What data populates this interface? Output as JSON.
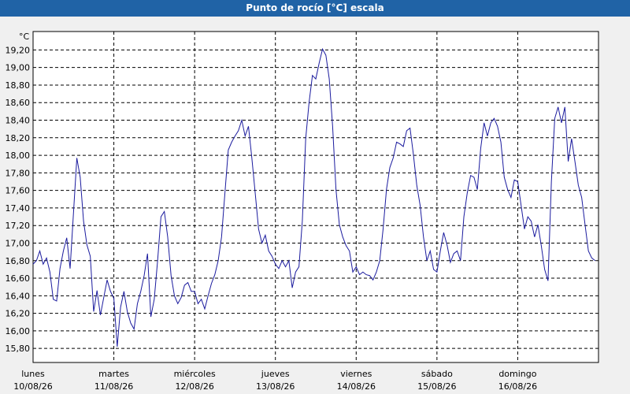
{
  "chart_data": {
    "type": "line",
    "title": "Punto de rocío [°C] escala",
    "y_unit": "°C",
    "xlim": [
      0,
      168
    ],
    "ylim": [
      15.64,
      19.41
    ],
    "grid": true,
    "xticks": [
      {
        "value": 0,
        "label": "lunes"
      },
      {
        "value": 24,
        "label": "martes"
      },
      {
        "value": 48,
        "label": "miércoles"
      },
      {
        "value": 72,
        "label": "jueves"
      },
      {
        "value": 96,
        "label": "viernes"
      },
      {
        "value": 120,
        "label": "sábado"
      },
      {
        "value": 144,
        "label": "domingo"
      }
    ],
    "xtick_dates": [
      "10/08/26",
      "11/08/26",
      "12/08/26",
      "13/08/26",
      "14/08/26",
      "15/08/26",
      "16/08/26"
    ],
    "yticks": [
      {
        "value": 15.8,
        "label": "15,80"
      },
      {
        "value": 16.0,
        "label": "16,00"
      },
      {
        "value": 16.2,
        "label": "16,20"
      },
      {
        "value": 16.4,
        "label": "16,40"
      },
      {
        "value": 16.6,
        "label": "16,60"
      },
      {
        "value": 16.8,
        "label": "16,80"
      },
      {
        "value": 17.0,
        "label": "17,00"
      },
      {
        "value": 17.2,
        "label": "17,20"
      },
      {
        "value": 17.4,
        "label": "17,40"
      },
      {
        "value": 17.6,
        "label": "17,60"
      },
      {
        "value": 17.8,
        "label": "17,80"
      },
      {
        "value": 18.0,
        "label": "18,00"
      },
      {
        "value": 18.2,
        "label": "18,20"
      },
      {
        "value": 18.4,
        "label": "18,40"
      },
      {
        "value": 18.6,
        "label": "18,60"
      },
      {
        "value": 18.8,
        "label": "18,80"
      },
      {
        "value": 19.0,
        "label": "19,00"
      },
      {
        "value": 19.2,
        "label": "19,20"
      }
    ],
    "x": [
      0,
      1,
      2,
      3,
      4,
      5,
      6,
      7,
      8,
      9,
      10,
      11,
      12,
      13,
      14,
      15,
      16,
      17,
      18,
      19,
      20,
      21,
      22,
      23,
      24,
      25,
      26,
      27,
      28,
      29,
      30,
      31,
      32,
      33,
      34,
      35,
      36,
      37,
      38,
      39,
      40,
      41,
      42,
      43,
      44,
      45,
      46,
      47,
      48,
      49,
      50,
      51,
      52,
      53,
      54,
      55,
      56,
      57,
      58,
      59,
      60,
      61,
      62,
      63,
      64,
      65,
      66,
      67,
      68,
      69,
      70,
      71,
      72,
      73,
      74,
      75,
      76,
      77,
      78,
      79,
      80,
      81,
      82,
      83,
      84,
      85,
      86,
      87,
      88,
      89,
      90,
      91,
      92,
      93,
      94,
      95,
      96,
      97,
      98,
      99,
      100,
      101,
      102,
      103,
      104,
      105,
      106,
      107,
      108,
      109,
      110,
      111,
      112,
      113,
      114,
      115,
      116,
      117,
      118,
      119,
      120,
      121,
      122,
      123,
      124,
      125,
      126,
      127,
      128,
      129,
      130,
      131,
      132,
      133,
      134,
      135,
      136,
      137,
      138,
      139,
      140,
      141,
      142,
      143,
      144,
      145,
      146,
      147,
      148,
      149,
      150,
      151,
      152,
      153,
      154,
      155,
      156,
      157,
      158,
      159,
      160,
      161,
      162,
      163,
      164,
      165,
      166,
      167
    ],
    "series": [
      {
        "color": "#1b1b9e",
        "values": [
          16.76,
          16.8,
          16.91,
          16.76,
          16.83,
          16.67,
          16.36,
          16.34,
          16.71,
          16.91,
          17.06,
          16.71,
          17.34,
          17.97,
          17.75,
          17.25,
          16.98,
          16.85,
          16.22,
          16.46,
          16.18,
          16.38,
          16.58,
          16.45,
          16.37,
          15.82,
          16.27,
          16.45,
          16.22,
          16.09,
          16.02,
          16.31,
          16.45,
          16.63,
          16.88,
          16.16,
          16.36,
          16.8,
          17.3,
          17.36,
          17.07,
          16.63,
          16.4,
          16.31,
          16.38,
          16.52,
          16.55,
          16.45,
          16.45,
          16.31,
          16.36,
          16.25,
          16.4,
          16.54,
          16.64,
          16.8,
          17.07,
          17.57,
          18.06,
          18.15,
          18.22,
          18.28,
          18.4,
          18.22,
          18.33,
          17.97,
          17.57,
          17.16,
          17.0,
          17.09,
          16.91,
          16.85,
          16.76,
          16.71,
          16.8,
          16.73,
          16.8,
          16.49,
          16.67,
          16.73,
          17.25,
          18.19,
          18.6,
          18.91,
          18.87,
          19.05,
          19.21,
          19.14,
          18.87,
          18.33,
          17.61,
          17.21,
          17.07,
          16.97,
          16.91,
          16.67,
          16.73,
          16.64,
          16.67,
          16.64,
          16.63,
          16.58,
          16.67,
          16.8,
          17.16,
          17.61,
          17.86,
          17.97,
          18.15,
          18.13,
          18.1,
          18.28,
          18.31,
          18.01,
          17.66,
          17.43,
          17.07,
          16.8,
          16.91,
          16.7,
          16.67,
          16.91,
          17.12,
          16.98,
          16.78,
          16.88,
          16.91,
          16.8,
          17.3,
          17.57,
          17.77,
          17.75,
          17.61,
          18.08,
          18.37,
          18.22,
          18.37,
          18.42,
          18.33,
          18.15,
          17.75,
          17.61,
          17.52,
          17.72,
          17.7,
          17.43,
          17.16,
          17.3,
          17.25,
          17.07,
          17.21,
          16.97,
          16.7,
          16.57,
          17.7,
          18.42,
          18.55,
          18.37,
          18.55,
          17.93,
          18.19,
          17.93,
          17.66,
          17.52,
          17.21,
          16.91,
          16.83,
          16.8
        ]
      }
    ]
  }
}
